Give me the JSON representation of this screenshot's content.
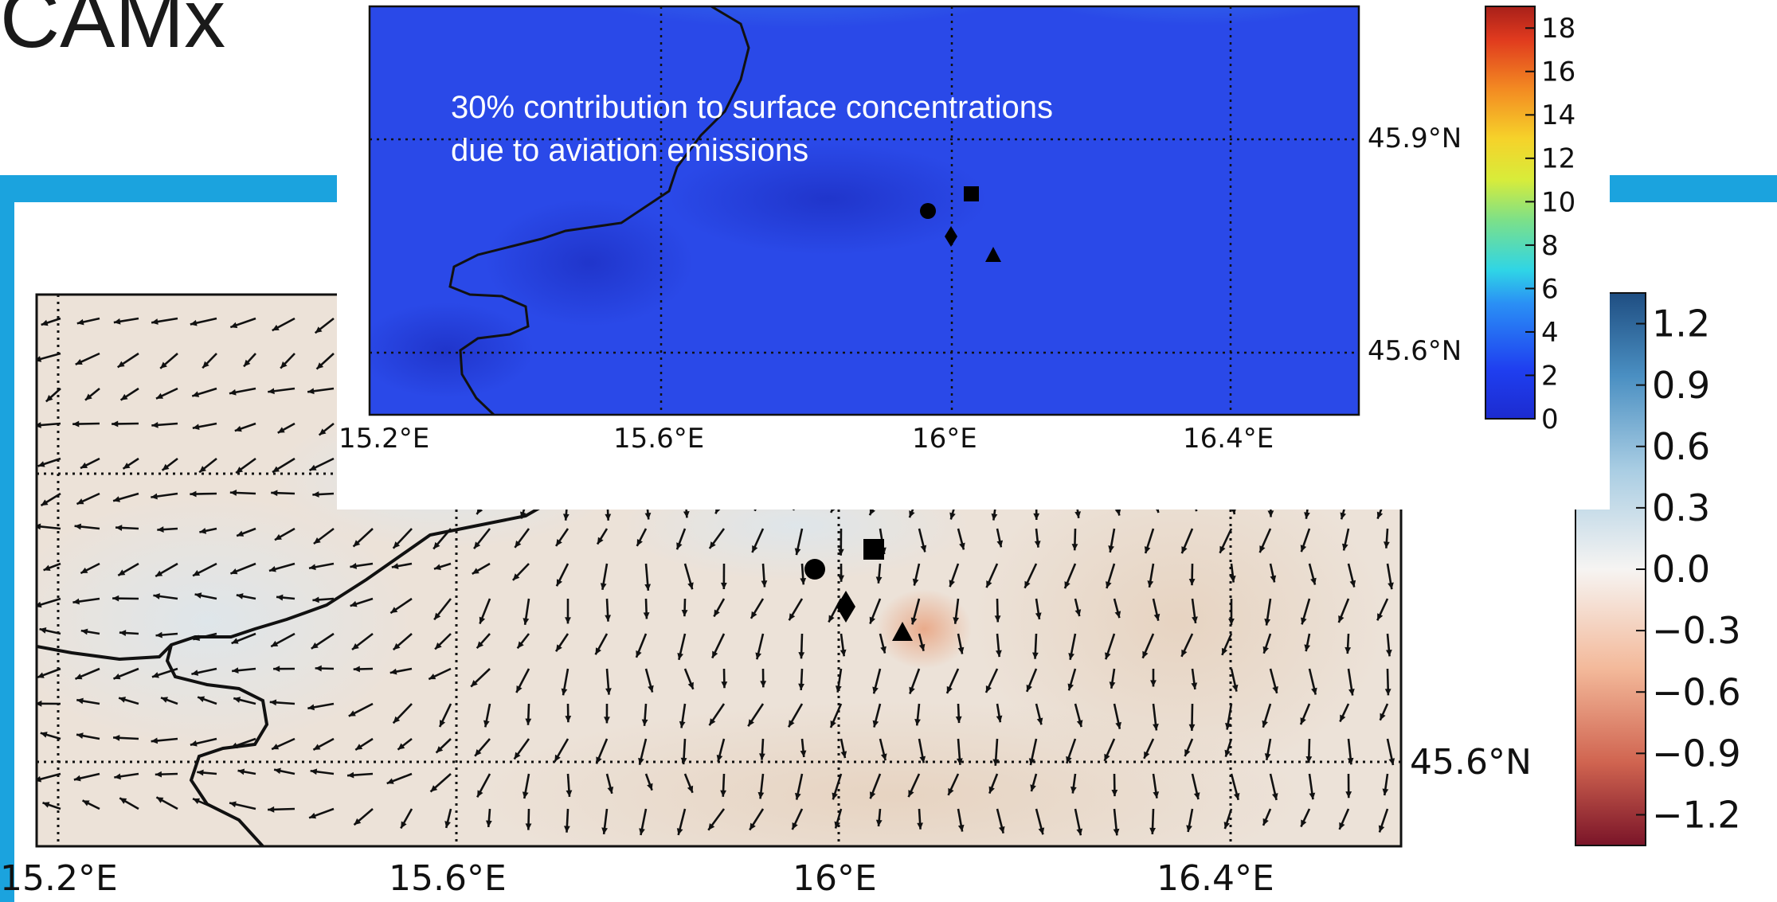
{
  "slide": {
    "title": "CAMx",
    "accent_color": "#1ba3de"
  },
  "inset_map": {
    "annotation_line1": "30% contribution to surface concentrations",
    "annotation_line2": "due to aviation emissions",
    "lon_ticks": [
      "15.2°E",
      "15.6°E",
      "16°E",
      "16.4°E"
    ],
    "lat_ticks": [
      "45.9°N",
      "45.6°N"
    ],
    "colorbar_ticks": [
      "18",
      "16",
      "14",
      "12",
      "10",
      "8",
      "6",
      "4",
      "2",
      "0"
    ],
    "colorbar_min": 0,
    "colorbar_max": 19,
    "colormap": "jet",
    "markers": [
      "circle-marker",
      "square-marker",
      "diamond-marker",
      "triangle-marker"
    ]
  },
  "main_map": {
    "lon_ticks": [
      "15.2°E",
      "15.6°E",
      "16°E",
      "16.4°E"
    ],
    "lat_ticks": [
      "45.6°N"
    ],
    "colorbar_ticks": [
      "1.2",
      "0.9",
      "0.6",
      "0.3",
      "0.0",
      "−0.3",
      "−0.6",
      "−0.9",
      "−1.2"
    ],
    "colorbar_min": -1.35,
    "colorbar_max": 1.35,
    "colormap": "RdBu",
    "wind_field": "wind-vector-arrows",
    "markers": [
      "circle-marker",
      "square-marker",
      "diamond-marker",
      "triangle-marker"
    ]
  }
}
